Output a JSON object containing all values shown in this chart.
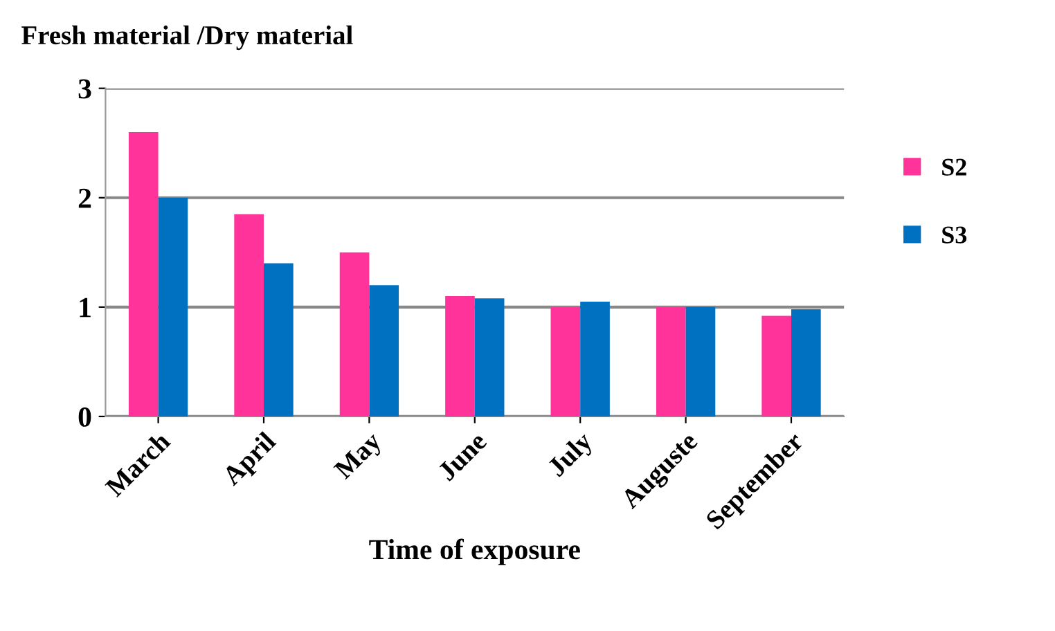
{
  "chart_data": {
    "type": "bar",
    "title": "Fresh material /Dry material",
    "xlabel": "Time of exposure",
    "categories": [
      "March",
      "April",
      "May",
      "June",
      "July",
      "Auguste",
      "September"
    ],
    "series": [
      {
        "name": "S2",
        "color": "#ff3399",
        "values": [
          2.6,
          1.85,
          1.5,
          1.1,
          1.0,
          1.0,
          0.92
        ]
      },
      {
        "name": "S3",
        "color": "#0070c0",
        "values": [
          2.0,
          1.4,
          1.2,
          1.08,
          1.05,
          1.0,
          0.98
        ]
      }
    ],
    "ylim": [
      0,
      3
    ],
    "yticks": [
      0,
      1,
      2,
      3
    ],
    "grid": "y",
    "legend": "right"
  }
}
